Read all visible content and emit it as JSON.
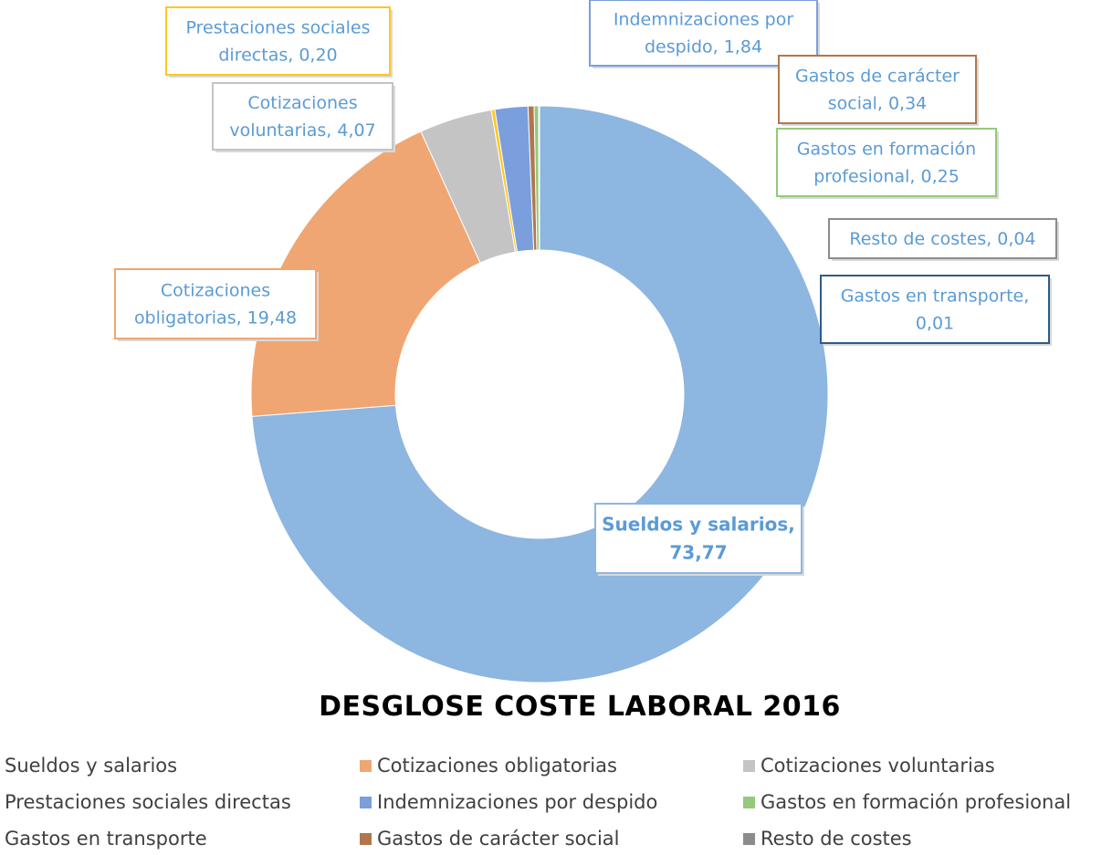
{
  "chart_data": {
    "type": "donut",
    "title": "DESGLOSE COSTE LABORAL 2016",
    "categories": [
      "Sueldos y salarios",
      "Cotizaciones obligatorias",
      "Cotizaciones voluntarias",
      "Prestaciones sociales directas",
      "Indemnizaciones por despido",
      "Gastos en formación profesional",
      "Gastos en transporte",
      "Gastos de carácter social",
      "Resto de costes"
    ],
    "values": [
      73.77,
      19.48,
      4.07,
      0.2,
      1.84,
      0.25,
      0.01,
      0.34,
      0.04
    ],
    "colors": [
      "#8DB6E0",
      "#F0A672",
      "#C4C4C4",
      "#FFC720",
      "#7A9FDC",
      "#95C97C",
      "#2E5A87",
      "#B0774E",
      "#8C8C8C"
    ],
    "data_labels": [
      [
        "Sueldos y salarios,",
        "73,77"
      ],
      [
        "Cotizaciones",
        "obligatorias, 19,48"
      ],
      [
        "Cotizaciones",
        "voluntarias, 4,07"
      ],
      [
        "Prestaciones sociales",
        "directas, 0,20"
      ],
      [
        "Indemnizaciones por",
        "despido, 1,84"
      ],
      [
        "Gastos en formación",
        "profesional, 0,25"
      ],
      [
        "Gastos en transporte,",
        "0,01"
      ],
      [
        "Gastos de carácter",
        "social, 0,34"
      ],
      [
        "Resto de costes, 0,04"
      ]
    ],
    "label_text_color": "#5B9BD5",
    "legend_position": "bottom",
    "legend_order": [
      0,
      1,
      2,
      3,
      4,
      5,
      6,
      7,
      8
    ],
    "slice_order": [
      0,
      1,
      2,
      3,
      4,
      7,
      5,
      8,
      6
    ]
  }
}
